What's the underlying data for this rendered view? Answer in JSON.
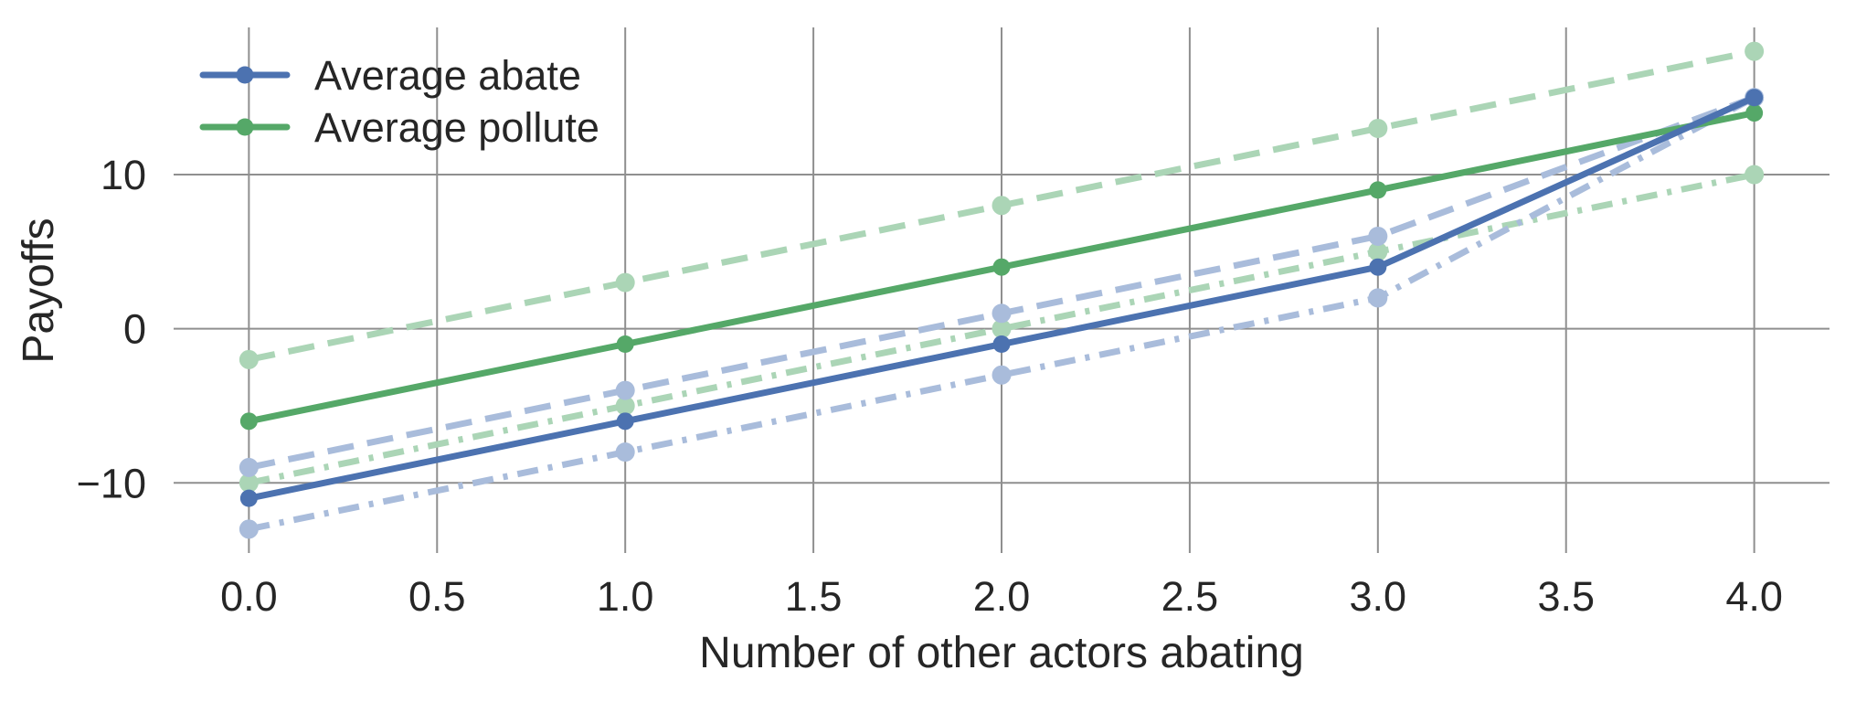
{
  "chart_data": {
    "type": "line",
    "title": "",
    "xlabel": "Number of other actors abating",
    "ylabel": "Payoffs",
    "x": [
      0,
      1,
      2,
      3,
      4
    ],
    "series": [
      {
        "name": "pollute-upper-bound",
        "style": "dashed",
        "color": "#ABD5B6",
        "marker_radius": 10.5,
        "values": [
          -2,
          3,
          8,
          13,
          18
        ]
      },
      {
        "name": "pollute-lower-bound",
        "style": "dashdot",
        "color": "#ABD5B6",
        "marker_radius": 10.5,
        "values": [
          -10,
          -5,
          0,
          5,
          10
        ]
      },
      {
        "name": "abate-upper-bound",
        "style": "dashed",
        "color": "#A9BCDB",
        "marker_radius": 10.5,
        "values": [
          -9,
          -4,
          1,
          6,
          15
        ]
      },
      {
        "name": "abate-lower-bound",
        "style": "dashdot",
        "color": "#A9BCDB",
        "marker_radius": 10.5,
        "values": [
          -13,
          -8,
          -3,
          2,
          15
        ]
      },
      {
        "name": "pollute-mean",
        "label": "Average pollute",
        "style": "solid",
        "color": "#55A868",
        "marker_radius": 9.5,
        "values": [
          -6,
          -1,
          4,
          9,
          14
        ]
      },
      {
        "name": "abate-mean",
        "label": "Average abate",
        "style": "solid",
        "color": "#4C72B0",
        "marker_radius": 9.5,
        "values": [
          -11,
          -6,
          -1,
          4,
          15
        ]
      }
    ],
    "xticks": [
      0.0,
      0.5,
      1.0,
      1.5,
      2.0,
      2.5,
      3.0,
      3.5,
      4.0
    ],
    "xtick_labels": [
      "0.0",
      "0.5",
      "1.0",
      "1.5",
      "2.0",
      "2.5",
      "3.0",
      "3.5",
      "4.0"
    ],
    "yticks": [
      10,
      0,
      -10
    ],
    "ytick_labels": [
      "10",
      "0",
      "−10"
    ],
    "xlim": [
      -0.2,
      4.2
    ],
    "ylim": [
      -14.55,
      19.55
    ],
    "grid": true,
    "grid_color": "#8f8f8f",
    "text_color": "#262626",
    "background_color": "#ffffff",
    "legend": {
      "position": "upper-left",
      "entries": [
        {
          "label": "Average abate",
          "color": "#4C72B0"
        },
        {
          "label": "Average pollute",
          "color": "#55A868"
        }
      ]
    }
  }
}
